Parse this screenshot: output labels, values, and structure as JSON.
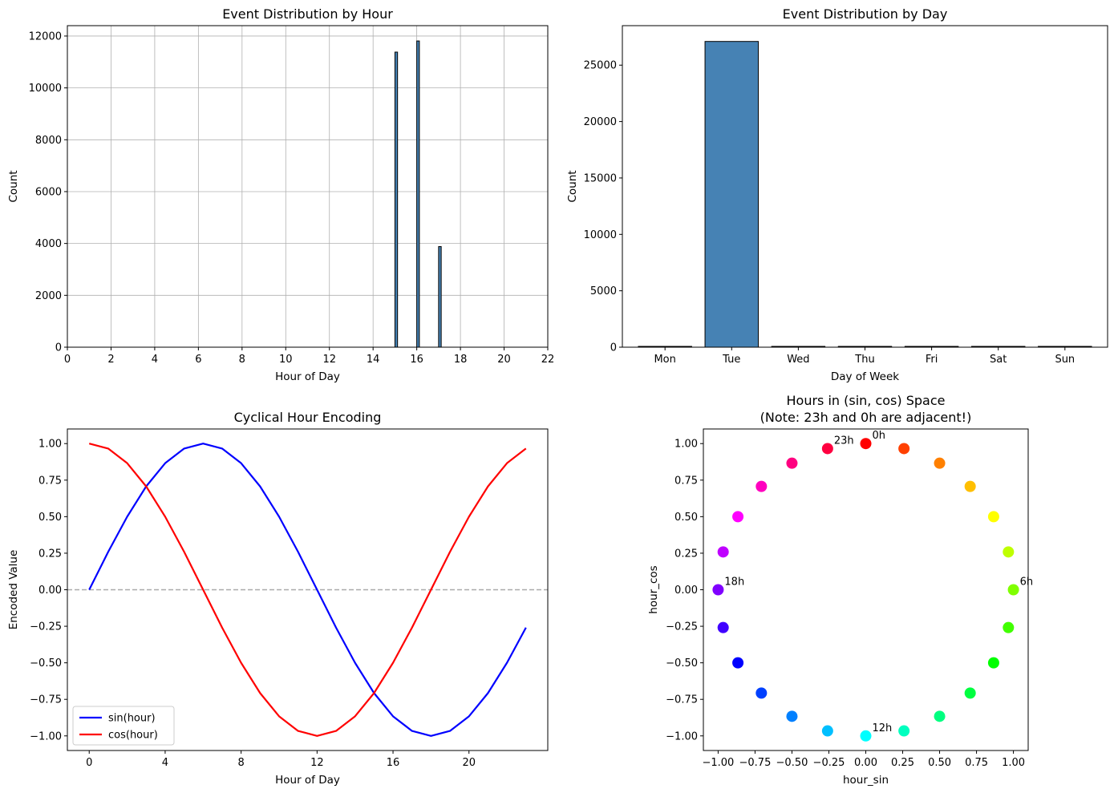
{
  "chart_data": [
    {
      "type": "bar",
      "title": "Event Distribution by Hour",
      "xlabel": "Hour of Day",
      "ylabel": "Count",
      "xlim": [
        0,
        22
      ],
      "ylim": [
        0,
        12400
      ],
      "xticks": [
        0,
        2,
        4,
        6,
        8,
        10,
        12,
        14,
        16,
        18,
        20,
        22
      ],
      "yticks": [
        0,
        2000,
        4000,
        6000,
        8000,
        10000,
        12000
      ],
      "grid": true,
      "bar_width": 0.12,
      "bars": [
        {
          "x": 15.0,
          "value": 11380
        },
        {
          "x": 16.0,
          "value": 11810
        },
        {
          "x": 17.0,
          "value": 3880
        }
      ],
      "bar_color": "#4682b4",
      "edge_color": "#000000"
    },
    {
      "type": "bar",
      "title": "Event Distribution by Day",
      "xlabel": "Day of Week",
      "ylabel": "Count",
      "categories": [
        "Mon",
        "Tue",
        "Wed",
        "Thu",
        "Fri",
        "Sat",
        "Sun"
      ],
      "values": [
        0,
        27100,
        0,
        0,
        0,
        0,
        0
      ],
      "ylim": [
        0,
        28500
      ],
      "yticks": [
        0,
        5000,
        10000,
        15000,
        20000,
        25000
      ],
      "grid": false,
      "bar_color": "#4682b4",
      "edge_color": "#000000"
    },
    {
      "type": "line",
      "title": "Cyclical Hour Encoding",
      "xlabel": "Hour of Day",
      "ylabel": "Encoded Value",
      "xlim": [
        -1.15,
        24.15
      ],
      "ylim": [
        -1.1,
        1.1
      ],
      "xticks": [
        0,
        4,
        8,
        12,
        16,
        20
      ],
      "yticks": [
        -1.0,
        -0.75,
        -0.5,
        -0.25,
        0.0,
        0.25,
        0.5,
        0.75,
        1.0
      ],
      "ytick_labels": [
        "−1.00",
        "−0.75",
        "−0.50",
        "−0.25",
        "0.00",
        "0.25",
        "0.50",
        "0.75",
        "1.00"
      ],
      "x": [
        0,
        1,
        2,
        3,
        4,
        5,
        6,
        7,
        8,
        9,
        10,
        11,
        12,
        13,
        14,
        15,
        16,
        17,
        18,
        19,
        20,
        21,
        22,
        23
      ],
      "series": [
        {
          "name": "sin(hour)",
          "color": "#0000ff",
          "values": [
            0.0,
            0.259,
            0.5,
            0.707,
            0.866,
            0.966,
            1.0,
            0.966,
            0.866,
            0.707,
            0.5,
            0.259,
            0.0,
            -0.259,
            -0.5,
            -0.707,
            -0.866,
            -0.966,
            -1.0,
            -0.966,
            -0.866,
            -0.707,
            -0.5,
            -0.259
          ]
        },
        {
          "name": "cos(hour)",
          "color": "#ff0000",
          "values": [
            1.0,
            0.966,
            0.866,
            0.707,
            0.5,
            0.259,
            0.0,
            -0.259,
            -0.5,
            -0.707,
            -0.866,
            -0.966,
            -1.0,
            -0.966,
            -0.866,
            -0.707,
            -0.5,
            -0.259,
            0.0,
            0.259,
            0.5,
            0.707,
            0.866,
            0.966
          ]
        }
      ],
      "hline": {
        "y": 0,
        "style": "dashed",
        "color": "#aaaaaa"
      },
      "legend": "lower-left"
    },
    {
      "type": "scatter",
      "title_lines": [
        "Hours in (sin, cos) Space",
        "(Note: 23h and 0h are adjacent!)"
      ],
      "xlabel": "hour_sin",
      "ylabel": "hour_cos",
      "xlim": [
        -1.1,
        1.1
      ],
      "ylim": [
        -1.1,
        1.1
      ],
      "xticks": [
        -1.0,
        -0.75,
        -0.5,
        -0.25,
        0.0,
        0.25,
        0.5,
        0.75,
        1.0
      ],
      "xtick_labels": [
        "−1.00",
        "−0.75",
        "−0.50",
        "−0.25",
        "0.00",
        "0.25",
        "0.50",
        "0.75",
        "1.00"
      ],
      "yticks": [
        -1.0,
        -0.75,
        -0.5,
        -0.25,
        0.0,
        0.25,
        0.5,
        0.75,
        1.0
      ],
      "ytick_labels": [
        "−1.00",
        "−0.75",
        "−0.50",
        "−0.25",
        "0.00",
        "0.25",
        "0.50",
        "0.75",
        "1.00"
      ],
      "hours": [
        0,
        1,
        2,
        3,
        4,
        5,
        6,
        7,
        8,
        9,
        10,
        11,
        12,
        13,
        14,
        15,
        16,
        17,
        18,
        19,
        20,
        21,
        22,
        23
      ],
      "colormap": "hsv",
      "annotations": [
        {
          "hour": 0,
          "text": "0h"
        },
        {
          "hour": 6,
          "text": "6h"
        },
        {
          "hour": 12,
          "text": "12h"
        },
        {
          "hour": 18,
          "text": "18h"
        },
        {
          "hour": 23,
          "text": "23h"
        }
      ]
    }
  ]
}
